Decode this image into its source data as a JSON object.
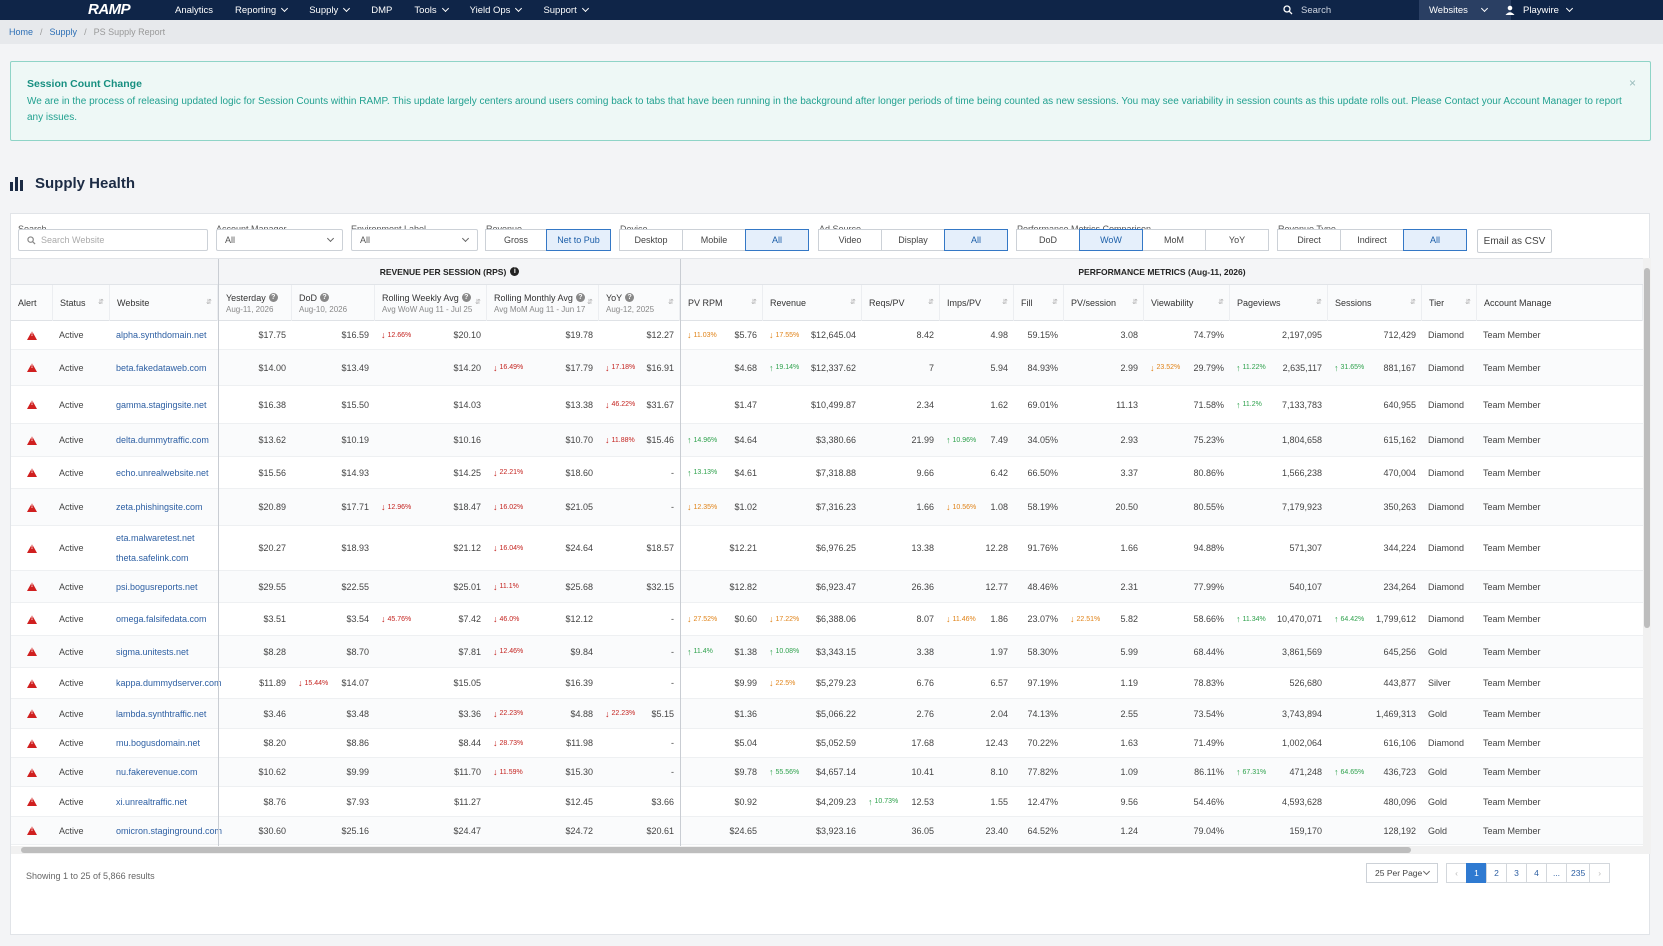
{
  "nav": {
    "logo": "RAMP",
    "items": [
      "Analytics",
      "Reporting",
      "Supply",
      "DMP",
      "Tools",
      "Yield Ops",
      "Support"
    ],
    "has_caret": [
      false,
      true,
      true,
      false,
      true,
      true,
      true
    ],
    "search_placeholder": "Search",
    "websites_label": "Websites",
    "user": "Playwire"
  },
  "breadcrumb": [
    "Home",
    "Supply",
    "PS Supply Report"
  ],
  "alert": {
    "title": "Session Count Change",
    "body": "We are in the process of releasing updated logic for Session Counts within RAMP. This update largely centers around users coming back to tabs that have been running in the background after longer periods of time being counted as new sessions. You may see variability in session counts as this update rolls out. Please Contact your Account Manager to report any issues.",
    "close": "×"
  },
  "page_title": "Supply Health",
  "filters": {
    "search_label": "Search",
    "search_placeholder": "Search Website",
    "account_manager_label": "Account Manager",
    "account_manager_value": "All",
    "environment_label": "Environment Label",
    "environment_value": "All",
    "revenue_label": "Revenue",
    "revenue_opts": [
      "Gross",
      "Net to Pub"
    ],
    "device_label": "Device",
    "device_opts": [
      "Desktop",
      "Mobile",
      "All"
    ],
    "adsource_label": "Ad Source",
    "adsource_opts": [
      "Video",
      "Display",
      "All"
    ],
    "perf_label": "Performance Metrics Comparison",
    "perf_opts": [
      "DoD",
      "WoW",
      "MoM",
      "YoY"
    ],
    "revtype_label": "Revenue Type",
    "revtype_opts": [
      "Direct",
      "Indirect",
      "All"
    ],
    "csv": "Email as CSV"
  },
  "groups": {
    "rps": "REVENUE PER SESSION (RPS)",
    "perf": "PERFORMANCE METRICS (Aug-11, 2026)"
  },
  "columns": {
    "alert": "Alert",
    "status": "Status",
    "website": "Website",
    "yesterday": "Yesterday",
    "yesterday_sub": "Aug-11, 2026",
    "dod": "DoD",
    "dod_sub": "Aug-10, 2026",
    "rwa": "Rolling Weekly Avg",
    "rwa_sub": "Avg WoW Aug 11 - Jul 25",
    "rma": "Rolling Monthly Avg",
    "rma_sub": "Avg MoM Aug 11 - Jun 17",
    "yoy": "YoY",
    "yoy_sub": "Aug-12, 2025",
    "pvrpm": "PV RPM",
    "revenue": "Revenue",
    "reqspv": "Reqs/PV",
    "impspv": "Imps/PV",
    "fill": "Fill",
    "pvsession": "PV/session",
    "viewability": "Viewability",
    "pageviews": "Pageviews",
    "sessions": "Sessions",
    "tier": "Tier",
    "am": "Account Manage"
  },
  "rows": [
    {
      "status": "Active",
      "site": "alpha.synthdomain.net",
      "site2": "",
      "yest": "$17.75",
      "dod": "$16.59",
      "dod_c": null,
      "rwa": "$20.10",
      "rwa_c": [
        "dn",
        "12.66%"
      ],
      "rma": "$19.78",
      "rma_c": null,
      "yoy": "$12.27",
      "yoy_c": null,
      "pvrpm": "$5.76",
      "pvrpm_c": [
        "or",
        "11.03%"
      ],
      "rev": "$12,645.04",
      "rev_c": [
        "or",
        "17.55%"
      ],
      "reqs": "8.42",
      "imps": "4.98",
      "imps_c": null,
      "fill": "59.15%",
      "pvs": "3.08",
      "pvs_c": null,
      "view": "74.79%",
      "view_c": null,
      "pv": "2,197,095",
      "pv_c": null,
      "sess": "712,429",
      "sess_c": null,
      "tier": "Diamond",
      "am": "Team Member"
    },
    {
      "status": "Active",
      "site": "beta.fakedataweb.com",
      "site2": "",
      "yest": "$14.00",
      "dod": "$13.49",
      "dod_c": null,
      "rwa": "$14.20",
      "rwa_c": null,
      "rma": "$17.79",
      "rma_c": [
        "dn",
        "16.49%"
      ],
      "yoy": "$16.91",
      "yoy_c": [
        "dn",
        "17.18%"
      ],
      "pvrpm": "$4.68",
      "pvrpm_c": null,
      "rev": "$12,337.62",
      "rev_c": [
        "up",
        "19.14%"
      ],
      "reqs": "7",
      "imps": "5.94",
      "imps_c": null,
      "fill": "84.93%",
      "pvs": "2.99",
      "pvs_c": null,
      "view": "29.79%",
      "view_c": [
        "or",
        "23.52%"
      ],
      "pv": "2,635,117",
      "pv_c": [
        "up",
        "11.22%"
      ],
      "sess": "881,167",
      "sess_c": [
        "up",
        "31.65%"
      ],
      "tier": "Diamond",
      "am": "Team Member"
    },
    {
      "status": "Active",
      "site": "gamma.stagingsite.net",
      "site2": "",
      "yest": "$16.38",
      "dod": "$15.50",
      "dod_c": null,
      "rwa": "$14.03",
      "rwa_c": null,
      "rma": "$13.38",
      "rma_c": null,
      "yoy": "$31.67",
      "yoy_c": [
        "dn",
        "46.22%"
      ],
      "pvrpm": "$1.47",
      "pvrpm_c": null,
      "rev": "$10,499.87",
      "rev_c": null,
      "reqs": "2.34",
      "imps": "1.62",
      "imps_c": null,
      "fill": "69.01%",
      "pvs": "11.13",
      "pvs_c": null,
      "view": "71.58%",
      "view_c": null,
      "pv": "7,133,783",
      "pv_c": [
        "up",
        "11.2%"
      ],
      "sess": "640,955",
      "sess_c": null,
      "tier": "Diamond",
      "am": "Team Member"
    },
    {
      "status": "Active",
      "site": "delta.dummytraffic.com",
      "site2": "",
      "yest": "$13.62",
      "dod": "$10.19",
      "dod_c": null,
      "rwa": "$10.16",
      "rwa_c": null,
      "rma": "$10.70",
      "rma_c": null,
      "yoy": "$15.46",
      "yoy_c": [
        "dn",
        "11.88%"
      ],
      "pvrpm": "$4.64",
      "pvrpm_c": [
        "up",
        "14.96%"
      ],
      "rev": "$3,380.66",
      "rev_c": null,
      "reqs": "21.99",
      "imps": "7.49",
      "imps_c": [
        "up",
        "10.96%"
      ],
      "fill": "34.05%",
      "pvs": "2.93",
      "pvs_c": null,
      "view": "75.23%",
      "view_c": null,
      "pv": "1,804,658",
      "pv_c": null,
      "sess": "615,162",
      "sess_c": null,
      "tier": "Diamond",
      "am": "Team Member"
    },
    {
      "status": "Active",
      "site": "echo.unrealwebsite.net",
      "site2": "",
      "yest": "$15.56",
      "dod": "$14.93",
      "dod_c": null,
      "rwa": "$14.25",
      "rwa_c": null,
      "rma": "$18.60",
      "rma_c": [
        "dn",
        "22.21%"
      ],
      "yoy": "-",
      "yoy_c": null,
      "pvrpm": "$4.61",
      "pvrpm_c": [
        "up",
        "13.13%"
      ],
      "rev": "$7,318.88",
      "rev_c": null,
      "reqs": "9.66",
      "imps": "6.42",
      "imps_c": null,
      "fill": "66.50%",
      "pvs": "3.37",
      "pvs_c": null,
      "view": "80.86%",
      "view_c": null,
      "pv": "1,566,238",
      "pv_c": null,
      "sess": "470,004",
      "sess_c": null,
      "tier": "Diamond",
      "am": "Team Member"
    },
    {
      "status": "Active",
      "site": "zeta.phishingsite.com",
      "site2": "",
      "yest": "$20.89",
      "dod": "$17.71",
      "dod_c": null,
      "rwa": "$18.47",
      "rwa_c": [
        "dn",
        "12.96%"
      ],
      "rma": "$21.05",
      "rma_c": [
        "dn",
        "16.02%"
      ],
      "yoy": "-",
      "yoy_c": null,
      "pvrpm": "$1.02",
      "pvrpm_c": [
        "or",
        "12.35%"
      ],
      "rev": "$7,316.23",
      "rev_c": null,
      "reqs": "1.66",
      "imps": "1.08",
      "imps_c": [
        "or",
        "10.56%"
      ],
      "fill": "58.19%",
      "pvs": "20.50",
      "pvs_c": null,
      "view": "80.55%",
      "view_c": null,
      "pv": "7,179,923",
      "pv_c": null,
      "sess": "350,263",
      "sess_c": null,
      "tier": "Diamond",
      "am": "Team Member"
    },
    {
      "status": "Active",
      "site": "eta.malwaretest.net",
      "site2": "theta.safelink.com",
      "yest": "$20.27",
      "dod": "$18.93",
      "dod_c": null,
      "rwa": "$21.12",
      "rwa_c": null,
      "rma": "$24.64",
      "rma_c": [
        "dn",
        "16.04%"
      ],
      "yoy": "$18.57",
      "yoy_c": null,
      "pvrpm": "$12.21",
      "pvrpm_c": null,
      "rev": "$6,976.25",
      "rev_c": null,
      "reqs": "13.38",
      "imps": "12.28",
      "imps_c": null,
      "fill": "91.76%",
      "pvs": "1.66",
      "pvs_c": null,
      "view": "94.88%",
      "view_c": null,
      "pv": "571,307",
      "pv_c": null,
      "sess": "344,224",
      "sess_c": null,
      "tier": "Diamond",
      "am": "Team Member"
    },
    {
      "status": "Active",
      "site": "psi.bogusreports.net",
      "site2": "",
      "yest": "$29.55",
      "dod": "$22.55",
      "dod_c": null,
      "rwa": "$25.01",
      "rwa_c": null,
      "rma": "$25.68",
      "rma_c": [
        "dn",
        "11.1%"
      ],
      "yoy": "$32.15",
      "yoy_c": null,
      "pvrpm": "$12.82",
      "pvrpm_c": null,
      "rev": "$6,923.47",
      "rev_c": null,
      "reqs": "26.36",
      "imps": "12.77",
      "imps_c": null,
      "fill": "48.46%",
      "pvs": "2.31",
      "pvs_c": null,
      "view": "77.99%",
      "view_c": null,
      "pv": "540,107",
      "pv_c": null,
      "sess": "234,264",
      "sess_c": null,
      "tier": "Diamond",
      "am": "Team Member"
    },
    {
      "status": "Active",
      "site": "omega.falsifedata.com",
      "site2": "",
      "yest": "$3.51",
      "dod": "$3.54",
      "dod_c": null,
      "rwa": "$7.42",
      "rwa_c": [
        "dn",
        "45.76%"
      ],
      "rma": "$12.12",
      "rma_c": [
        "dn",
        "46.0%"
      ],
      "yoy": "-",
      "yoy_c": null,
      "pvrpm": "$0.60",
      "pvrpm_c": [
        "or",
        "27.52%"
      ],
      "rev": "$6,388.06",
      "rev_c": [
        "or",
        "17.22%"
      ],
      "reqs": "8.07",
      "imps": "1.86",
      "imps_c": [
        "or",
        "11.46%"
      ],
      "fill": "23.07%",
      "pvs": "5.82",
      "pvs_c": [
        "or",
        "22.51%"
      ],
      "view": "58.66%",
      "view_c": null,
      "pv": "10,470,071",
      "pv_c": [
        "up",
        "11.34%"
      ],
      "sess": "1,799,612",
      "sess_c": [
        "up",
        "64.42%"
      ],
      "tier": "Diamond",
      "am": "Team Member"
    },
    {
      "status": "Active",
      "site": "sigma.unitests.net",
      "site2": "",
      "yest": "$8.28",
      "dod": "$8.70",
      "dod_c": null,
      "rwa": "$7.81",
      "rwa_c": null,
      "rma": "$9.84",
      "rma_c": [
        "dn",
        "12.46%"
      ],
      "yoy": "-",
      "yoy_c": null,
      "pvrpm": "$1.38",
      "pvrpm_c": [
        "up",
        "11.4%"
      ],
      "rev": "$3,343.15",
      "rev_c": [
        "up",
        "10.08%"
      ],
      "reqs": "3.38",
      "imps": "1.97",
      "imps_c": null,
      "fill": "58.30%",
      "pvs": "5.99",
      "pvs_c": null,
      "view": "68.44%",
      "view_c": null,
      "pv": "3,861,569",
      "pv_c": null,
      "sess": "645,256",
      "sess_c": null,
      "tier": "Gold",
      "am": "Team Member"
    },
    {
      "status": "Active",
      "site": "kappa.dummydserver.com",
      "site2": "",
      "yest": "$11.89",
      "dod": "$14.07",
      "dod_c": [
        "dn",
        "15.44%"
      ],
      "rwa": "$15.05",
      "rwa_c": null,
      "rma": "$16.39",
      "rma_c": null,
      "yoy": "-",
      "yoy_c": null,
      "pvrpm": "$9.99",
      "pvrpm_c": null,
      "rev": "$5,279.23",
      "rev_c": [
        "or",
        "22.5%"
      ],
      "reqs": "6.76",
      "imps": "6.57",
      "imps_c": null,
      "fill": "97.19%",
      "pvs": "1.19",
      "pvs_c": null,
      "view": "78.83%",
      "view_c": null,
      "pv": "526,680",
      "pv_c": null,
      "sess": "443,877",
      "sess_c": null,
      "tier": "Silver",
      "am": "Team Member"
    },
    {
      "status": "Active",
      "site": "lambda.synthtraffic.net",
      "site2": "",
      "yest": "$3.46",
      "dod": "$3.48",
      "dod_c": null,
      "rwa": "$3.36",
      "rwa_c": null,
      "rma": "$4.88",
      "rma_c": [
        "dn",
        "22.23%"
      ],
      "yoy": "$5.15",
      "yoy_c": [
        "dn",
        "22.23%"
      ],
      "pvrpm": "$1.36",
      "pvrpm_c": null,
      "rev": "$5,066.22",
      "rev_c": null,
      "reqs": "2.76",
      "imps": "2.04",
      "imps_c": null,
      "fill": "74.13%",
      "pvs": "2.55",
      "pvs_c": null,
      "view": "73.54%",
      "view_c": null,
      "pv": "3,743,894",
      "pv_c": null,
      "sess": "1,469,313",
      "sess_c": null,
      "tier": "Gold",
      "am": "Team Member"
    },
    {
      "status": "Active",
      "site": "mu.bogusdomain.net",
      "site2": "",
      "yest": "$8.20",
      "dod": "$8.86",
      "dod_c": null,
      "rwa": "$8.44",
      "rwa_c": null,
      "rma": "$11.98",
      "rma_c": [
        "dn",
        "28.73%"
      ],
      "yoy": "-",
      "yoy_c": null,
      "pvrpm": "$5.04",
      "pvrpm_c": null,
      "rev": "$5,052.59",
      "rev_c": null,
      "reqs": "17.68",
      "imps": "12.43",
      "imps_c": null,
      "fill": "70.22%",
      "pvs": "1.63",
      "pvs_c": null,
      "view": "71.49%",
      "view_c": null,
      "pv": "1,002,064",
      "pv_c": null,
      "sess": "616,106",
      "sess_c": null,
      "tier": "Diamond",
      "am": "Team Member"
    },
    {
      "status": "Active",
      "site": "nu.fakerevenue.com",
      "site2": "",
      "yest": "$10.62",
      "dod": "$9.99",
      "dod_c": null,
      "rwa": "$11.70",
      "rwa_c": null,
      "rma": "$15.30",
      "rma_c": [
        "dn",
        "11.59%"
      ],
      "yoy": "-",
      "yoy_c": null,
      "pvrpm": "$9.78",
      "pvrpm_c": null,
      "rev": "$4,657.14",
      "rev_c": [
        "up",
        "55.56%"
      ],
      "reqs": "10.41",
      "imps": "8.10",
      "imps_c": null,
      "fill": "77.82%",
      "pvs": "1.09",
      "pvs_c": null,
      "view": "86.11%",
      "view_c": null,
      "pv": "471,248",
      "pv_c": [
        "up",
        "67.31%"
      ],
      "sess": "436,723",
      "sess_c": [
        "up",
        "64.65%"
      ],
      "tier": "Gold",
      "am": "Team Member"
    },
    {
      "status": "Active",
      "site": "xi.unrealtraffic.net",
      "site2": "",
      "yest": "$8.76",
      "dod": "$7.93",
      "dod_c": null,
      "rwa": "$11.27",
      "rwa_c": null,
      "rma": "$12.45",
      "rma_c": null,
      "yoy": "$3.66",
      "yoy_c": null,
      "pvrpm": "$0.92",
      "pvrpm_c": null,
      "rev": "$4,209.23",
      "rev_c": null,
      "reqs": "12.53",
      "reqs_c": [
        "up",
        "10.73%"
      ],
      "imps": "1.55",
      "imps_c": null,
      "fill": "12.47%",
      "pvs": "9.56",
      "pvs_c": null,
      "view": "54.46%",
      "view_c": null,
      "pv": "4,593,628",
      "pv_c": null,
      "sess": "480,096",
      "sess_c": null,
      "tier": "Gold",
      "am": "Team Member"
    },
    {
      "status": "Active",
      "site": "omicron.staginground.com",
      "site2": "",
      "yest": "$30.60",
      "dod": "$25.16",
      "dod_c": null,
      "rwa": "$24.47",
      "rwa_c": null,
      "rma": "$24.72",
      "rma_c": null,
      "yoy": "$20.61",
      "yoy_c": null,
      "pvrpm": "$24.65",
      "pvrpm_c": null,
      "rev": "$3,923.16",
      "rev_c": null,
      "reqs": "36.05",
      "imps": "23.40",
      "imps_c": null,
      "fill": "64.52%",
      "pvs": "1.24",
      "pvs_c": null,
      "view": "79.04%",
      "view_c": null,
      "pv": "159,170",
      "pv_c": null,
      "sess": "128,192",
      "sess_c": null,
      "tier": "Gold",
      "am": "Team Member"
    }
  ],
  "footer": {
    "showing": "Showing 1 to 25 of 5,866 results",
    "per_page": "25 Per Page",
    "pages": [
      "‹",
      "1",
      "2",
      "3",
      "4",
      "...",
      "235",
      "›"
    ]
  },
  "colors": {
    "nav_bg": "#0f2548",
    "accent": "#2f7ad1",
    "down": "#c4231f",
    "up": "#2fa24d",
    "warn": "#e08318",
    "alert_text": "#1a9b8a"
  }
}
